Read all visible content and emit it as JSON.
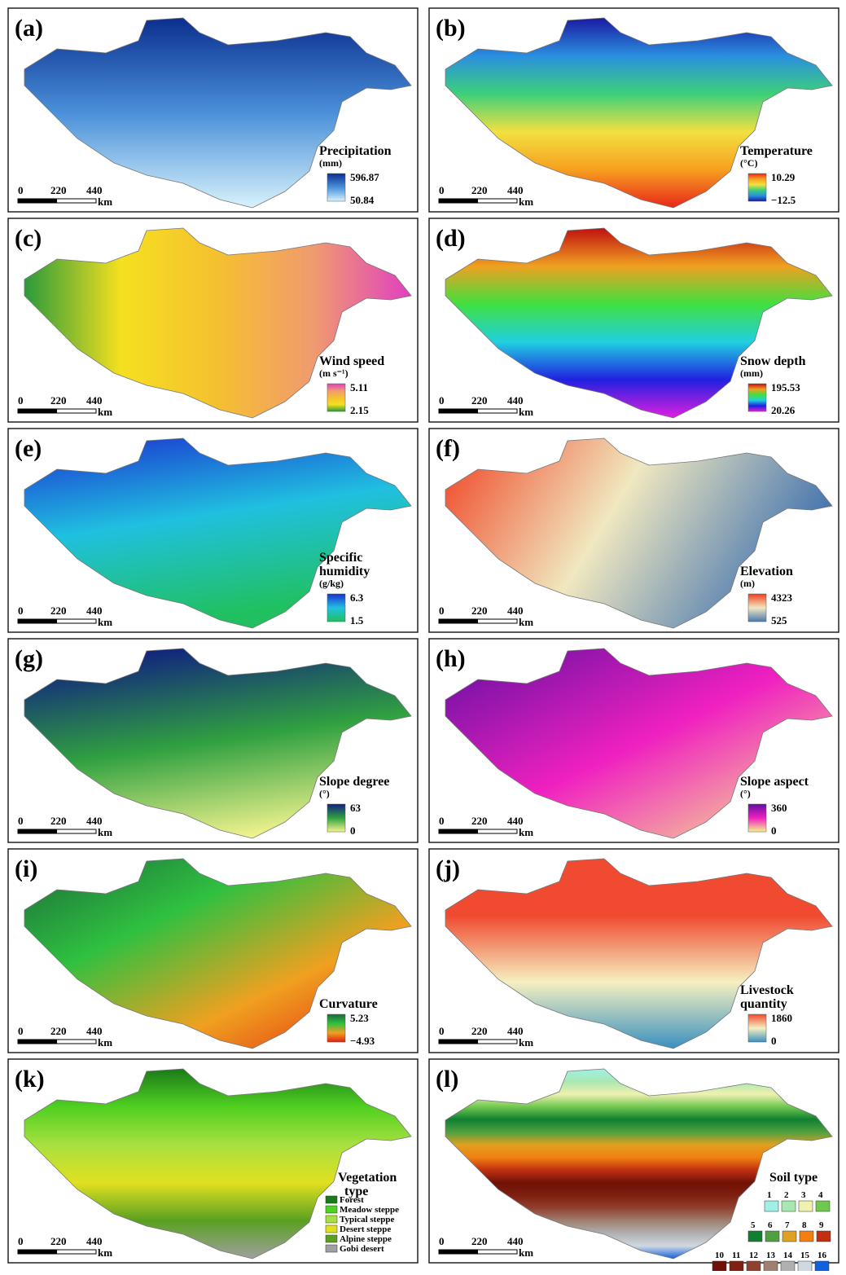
{
  "panels": [
    {
      "label": "(a)",
      "title": [
        "Precipitation"
      ],
      "unit": "(mm)",
      "max": "596.87",
      "min": "50.84",
      "colors": [
        "#0b2f8f",
        "#4a90d9",
        "#d8f2fb"
      ],
      "scale": [
        0,
        220,
        440
      ],
      "scale_unit": "km"
    },
    {
      "label": "(b)",
      "title": [
        "Temperature"
      ],
      "unit": "(°C)",
      "max": "10.29",
      "min": "−12.5",
      "colors": [
        "#e8261a",
        "#f7a020",
        "#f2e040",
        "#3cd07a",
        "#2a8fe0",
        "#1a1aa0"
      ],
      "scale": [
        0,
        220,
        440
      ],
      "scale_unit": "km"
    },
    {
      "label": "(c)",
      "title": [
        "Wind speed"
      ],
      "unit": "(m s⁻¹)",
      "max": "5.11",
      "min": "2.15",
      "colors": [
        "#e040c0",
        "#f09a70",
        "#f5c030",
        "#f5e020",
        "#2a9a3a"
      ],
      "scale": [
        0,
        220,
        440
      ],
      "scale_unit": "km"
    },
    {
      "label": "(d)",
      "title": [
        "Snow depth"
      ],
      "unit": "(mm)",
      "max": "195.53",
      "min": "20.26",
      "colors": [
        "#c01010",
        "#f0a020",
        "#40e040",
        "#20d0e0",
        "#2020e0",
        "#e020e0"
      ],
      "scale": [
        0,
        220,
        440
      ],
      "scale_unit": "km"
    },
    {
      "label": "(e)",
      "title": [
        "Specific",
        "humidity"
      ],
      "unit": "(g/kg)",
      "max": "6.3",
      "min": "1.5",
      "colors": [
        "#1a30d0",
        "#20c0e0",
        "#20c060"
      ],
      "scale": [
        0,
        220,
        440
      ],
      "scale_unit": "km"
    },
    {
      "label": "(f)",
      "title": [
        "Elevation"
      ],
      "unit": "(m)",
      "max": "4323",
      "min": "525",
      "colors": [
        "#f04020",
        "#f0e8c0",
        "#4a78b0"
      ],
      "scale": [
        0,
        220,
        440
      ],
      "scale_unit": "km"
    },
    {
      "label": "(g)",
      "title": [
        "Slope degree"
      ],
      "unit": "(°)",
      "max": "63",
      "min": "0",
      "colors": [
        "#102080",
        "#30a040",
        "#f5f590"
      ],
      "scale": [
        0,
        220,
        440
      ],
      "scale_unit": "km"
    },
    {
      "label": "(h)",
      "title": [
        "Slope aspect"
      ],
      "unit": "(°)",
      "max": "360",
      "min": "0",
      "colors": [
        "#6010a0",
        "#f020c0",
        "#f5f590"
      ],
      "scale": [
        0,
        220,
        440
      ],
      "scale_unit": "km"
    },
    {
      "label": "(i)",
      "title": [
        "Curvature"
      ],
      "max": "5.23",
      "min": "−4.93",
      "colors": [
        "#1a6a3a",
        "#30c040",
        "#f0a020",
        "#e02010"
      ],
      "scale": [
        0,
        220,
        440
      ],
      "scale_unit": "km"
    },
    {
      "label": "(j)",
      "title": [
        "Livestock",
        "quantity"
      ],
      "max": "1860",
      "min": "0",
      "colors": [
        "#f04a30",
        "#f5f0c0",
        "#3a90c0"
      ],
      "scale": [
        0,
        220,
        440
      ],
      "scale_unit": "km"
    },
    {
      "label": "(k)",
      "title": [
        "Vegetation",
        "type"
      ],
      "classes": [
        {
          "name": "Forest",
          "color": "#1a7a1a"
        },
        {
          "name": "Meadow steppe",
          "color": "#50d020"
        },
        {
          "name": "Typical steppe",
          "color": "#a8e040"
        },
        {
          "name": "Desert steppe",
          "color": "#e0e020"
        },
        {
          "name": "Alpine steppe",
          "color": "#5aa020"
        },
        {
          "name": "Gobi desert",
          "color": "#a0a0a0"
        }
      ],
      "scale": [
        0,
        220,
        440
      ],
      "scale_unit": "km"
    },
    {
      "label": "(l)",
      "title": [
        "Soil type"
      ],
      "classes": [
        {
          "name": "1",
          "color": "#a0f0e8"
        },
        {
          "name": "2",
          "color": "#a8e8b0"
        },
        {
          "name": "3",
          "color": "#f0f0b0"
        },
        {
          "name": "4",
          "color": "#70c850"
        },
        {
          "name": "5",
          "color": "#108030"
        },
        {
          "name": "6",
          "color": "#50a040"
        },
        {
          "name": "7",
          "color": "#e0a020"
        },
        {
          "name": "8",
          "color": "#f08010"
        },
        {
          "name": "9",
          "color": "#c03010"
        },
        {
          "name": "10",
          "color": "#701008"
        },
        {
          "name": "11",
          "color": "#802010"
        },
        {
          "name": "12",
          "color": "#904030"
        },
        {
          "name": "13",
          "color": "#a08070"
        },
        {
          "name": "14",
          "color": "#b0b0b0"
        },
        {
          "name": "15",
          "color": "#d0d8e0"
        },
        {
          "name": "16",
          "color": "#1060e0"
        }
      ],
      "scale": [
        0,
        220,
        440
      ],
      "scale_unit": "km"
    }
  ]
}
